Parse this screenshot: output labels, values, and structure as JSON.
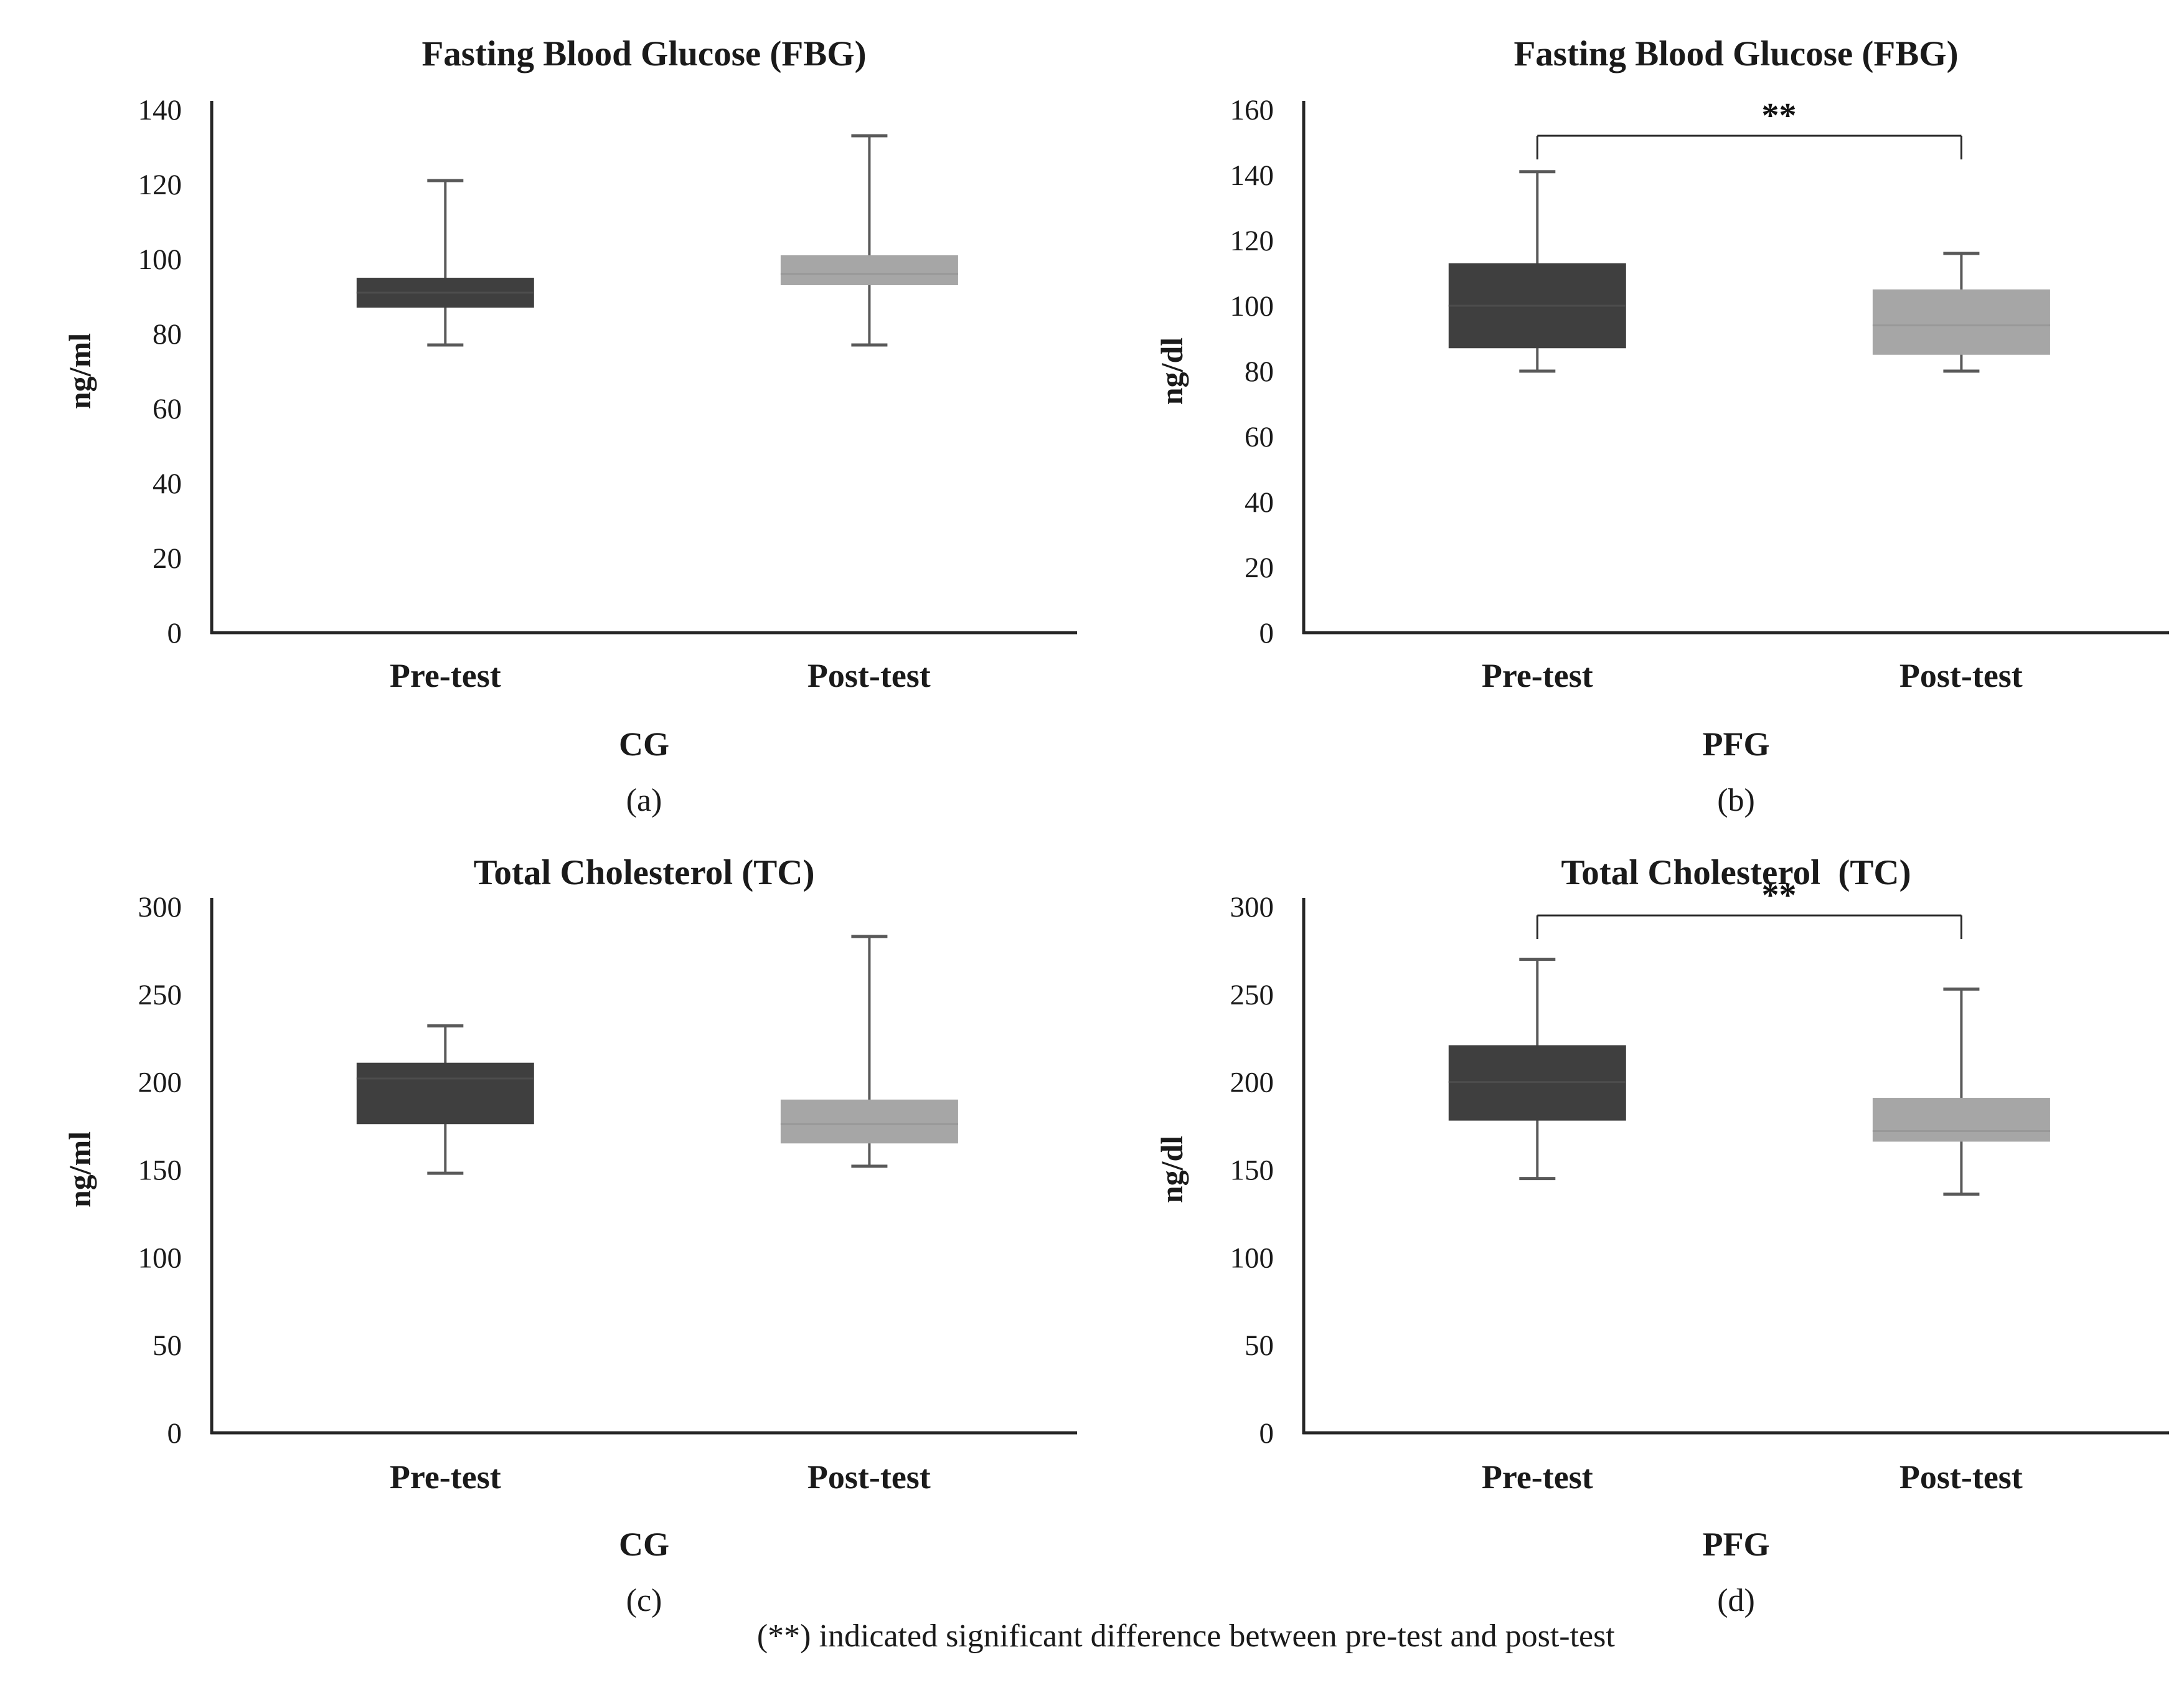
{
  "page": {
    "footnote": "(**) indicated significant difference between pre-test and post-test"
  },
  "colors": {
    "box_dark": "#3f3f3f",
    "box_light": "#a6a6a6",
    "median_on_dark": "#4d4d4d",
    "median_on_light": "#989898",
    "whisker": "#595959",
    "axis": "#262626",
    "text": "#1a1a1a"
  },
  "chart_data": [
    {
      "panel": "a",
      "type": "boxplot",
      "title": "Fasting Blood Glucose (FBG)",
      "ylabel": "ng/ml",
      "ylim": [
        0,
        140
      ],
      "yticks": [
        0,
        20,
        40,
        60,
        80,
        100,
        120,
        140
      ],
      "grid": false,
      "categories": [
        "Pre-test",
        "Post-test"
      ],
      "group_label": "CG",
      "caption": "(a)",
      "series": [
        {
          "name": "Pre-test",
          "color_key": "box_dark",
          "whisker_low": 77,
          "q1": 87,
          "median": 91,
          "q3": 95,
          "whisker_high": 121
        },
        {
          "name": "Post-test",
          "color_key": "box_light",
          "whisker_low": 77,
          "q1": 93,
          "median": 96,
          "q3": 101,
          "whisker_high": 133
        }
      ],
      "significance": null
    },
    {
      "panel": "b",
      "type": "boxplot",
      "title": "Fasting Blood Glucose (FBG)",
      "ylabel": "ng/dl",
      "ylim": [
        0,
        160
      ],
      "yticks": [
        0,
        20,
        40,
        60,
        80,
        100,
        120,
        140,
        160
      ],
      "grid": false,
      "categories": [
        "Pre-test",
        "Post-test"
      ],
      "group_label": "PFG",
      "caption": "(b)",
      "series": [
        {
          "name": "Pre-test",
          "color_key": "box_dark",
          "whisker_low": 80,
          "q1": 87,
          "median": 100,
          "q3": 113,
          "whisker_high": 141
        },
        {
          "name": "Post-test",
          "color_key": "box_light",
          "whisker_low": 80,
          "q1": 85,
          "median": 94,
          "q3": 105,
          "whisker_high": 116
        }
      ],
      "significance": {
        "label": "**",
        "y": 152
      }
    },
    {
      "panel": "c",
      "type": "boxplot",
      "title": "Total Cholesterol (TC)",
      "ylabel": "ng/ml",
      "ylim": [
        0,
        300
      ],
      "yticks": [
        0,
        50,
        100,
        150,
        200,
        250,
        300
      ],
      "grid": false,
      "categories": [
        "Pre-test",
        "Post-test"
      ],
      "group_label": "CG",
      "caption": "(c)",
      "series": [
        {
          "name": "Pre-test",
          "color_key": "box_dark",
          "whisker_low": 148,
          "q1": 176,
          "median": 202,
          "q3": 211,
          "whisker_high": 232
        },
        {
          "name": "Post-test",
          "color_key": "box_light",
          "whisker_low": 152,
          "q1": 165,
          "median": 176,
          "q3": 190,
          "whisker_high": 283
        }
      ],
      "significance": null
    },
    {
      "panel": "d",
      "type": "boxplot",
      "title": "Total Cholesterol  (TC)",
      "ylabel": "ng/dl",
      "ylim": [
        0,
        300
      ],
      "yticks": [
        0,
        50,
        100,
        150,
        200,
        250,
        300
      ],
      "grid": false,
      "categories": [
        "Pre-test",
        "Post-test"
      ],
      "group_label": "PFG",
      "caption": "(d)",
      "series": [
        {
          "name": "Pre-test",
          "color_key": "box_dark",
          "whisker_low": 145,
          "q1": 178,
          "median": 200,
          "q3": 221,
          "whisker_high": 270
        },
        {
          "name": "Post-test",
          "color_key": "box_light",
          "whisker_low": 136,
          "q1": 166,
          "median": 172,
          "q3": 191,
          "whisker_high": 253
        }
      ],
      "significance": {
        "label": "**",
        "y": 295
      }
    }
  ]
}
